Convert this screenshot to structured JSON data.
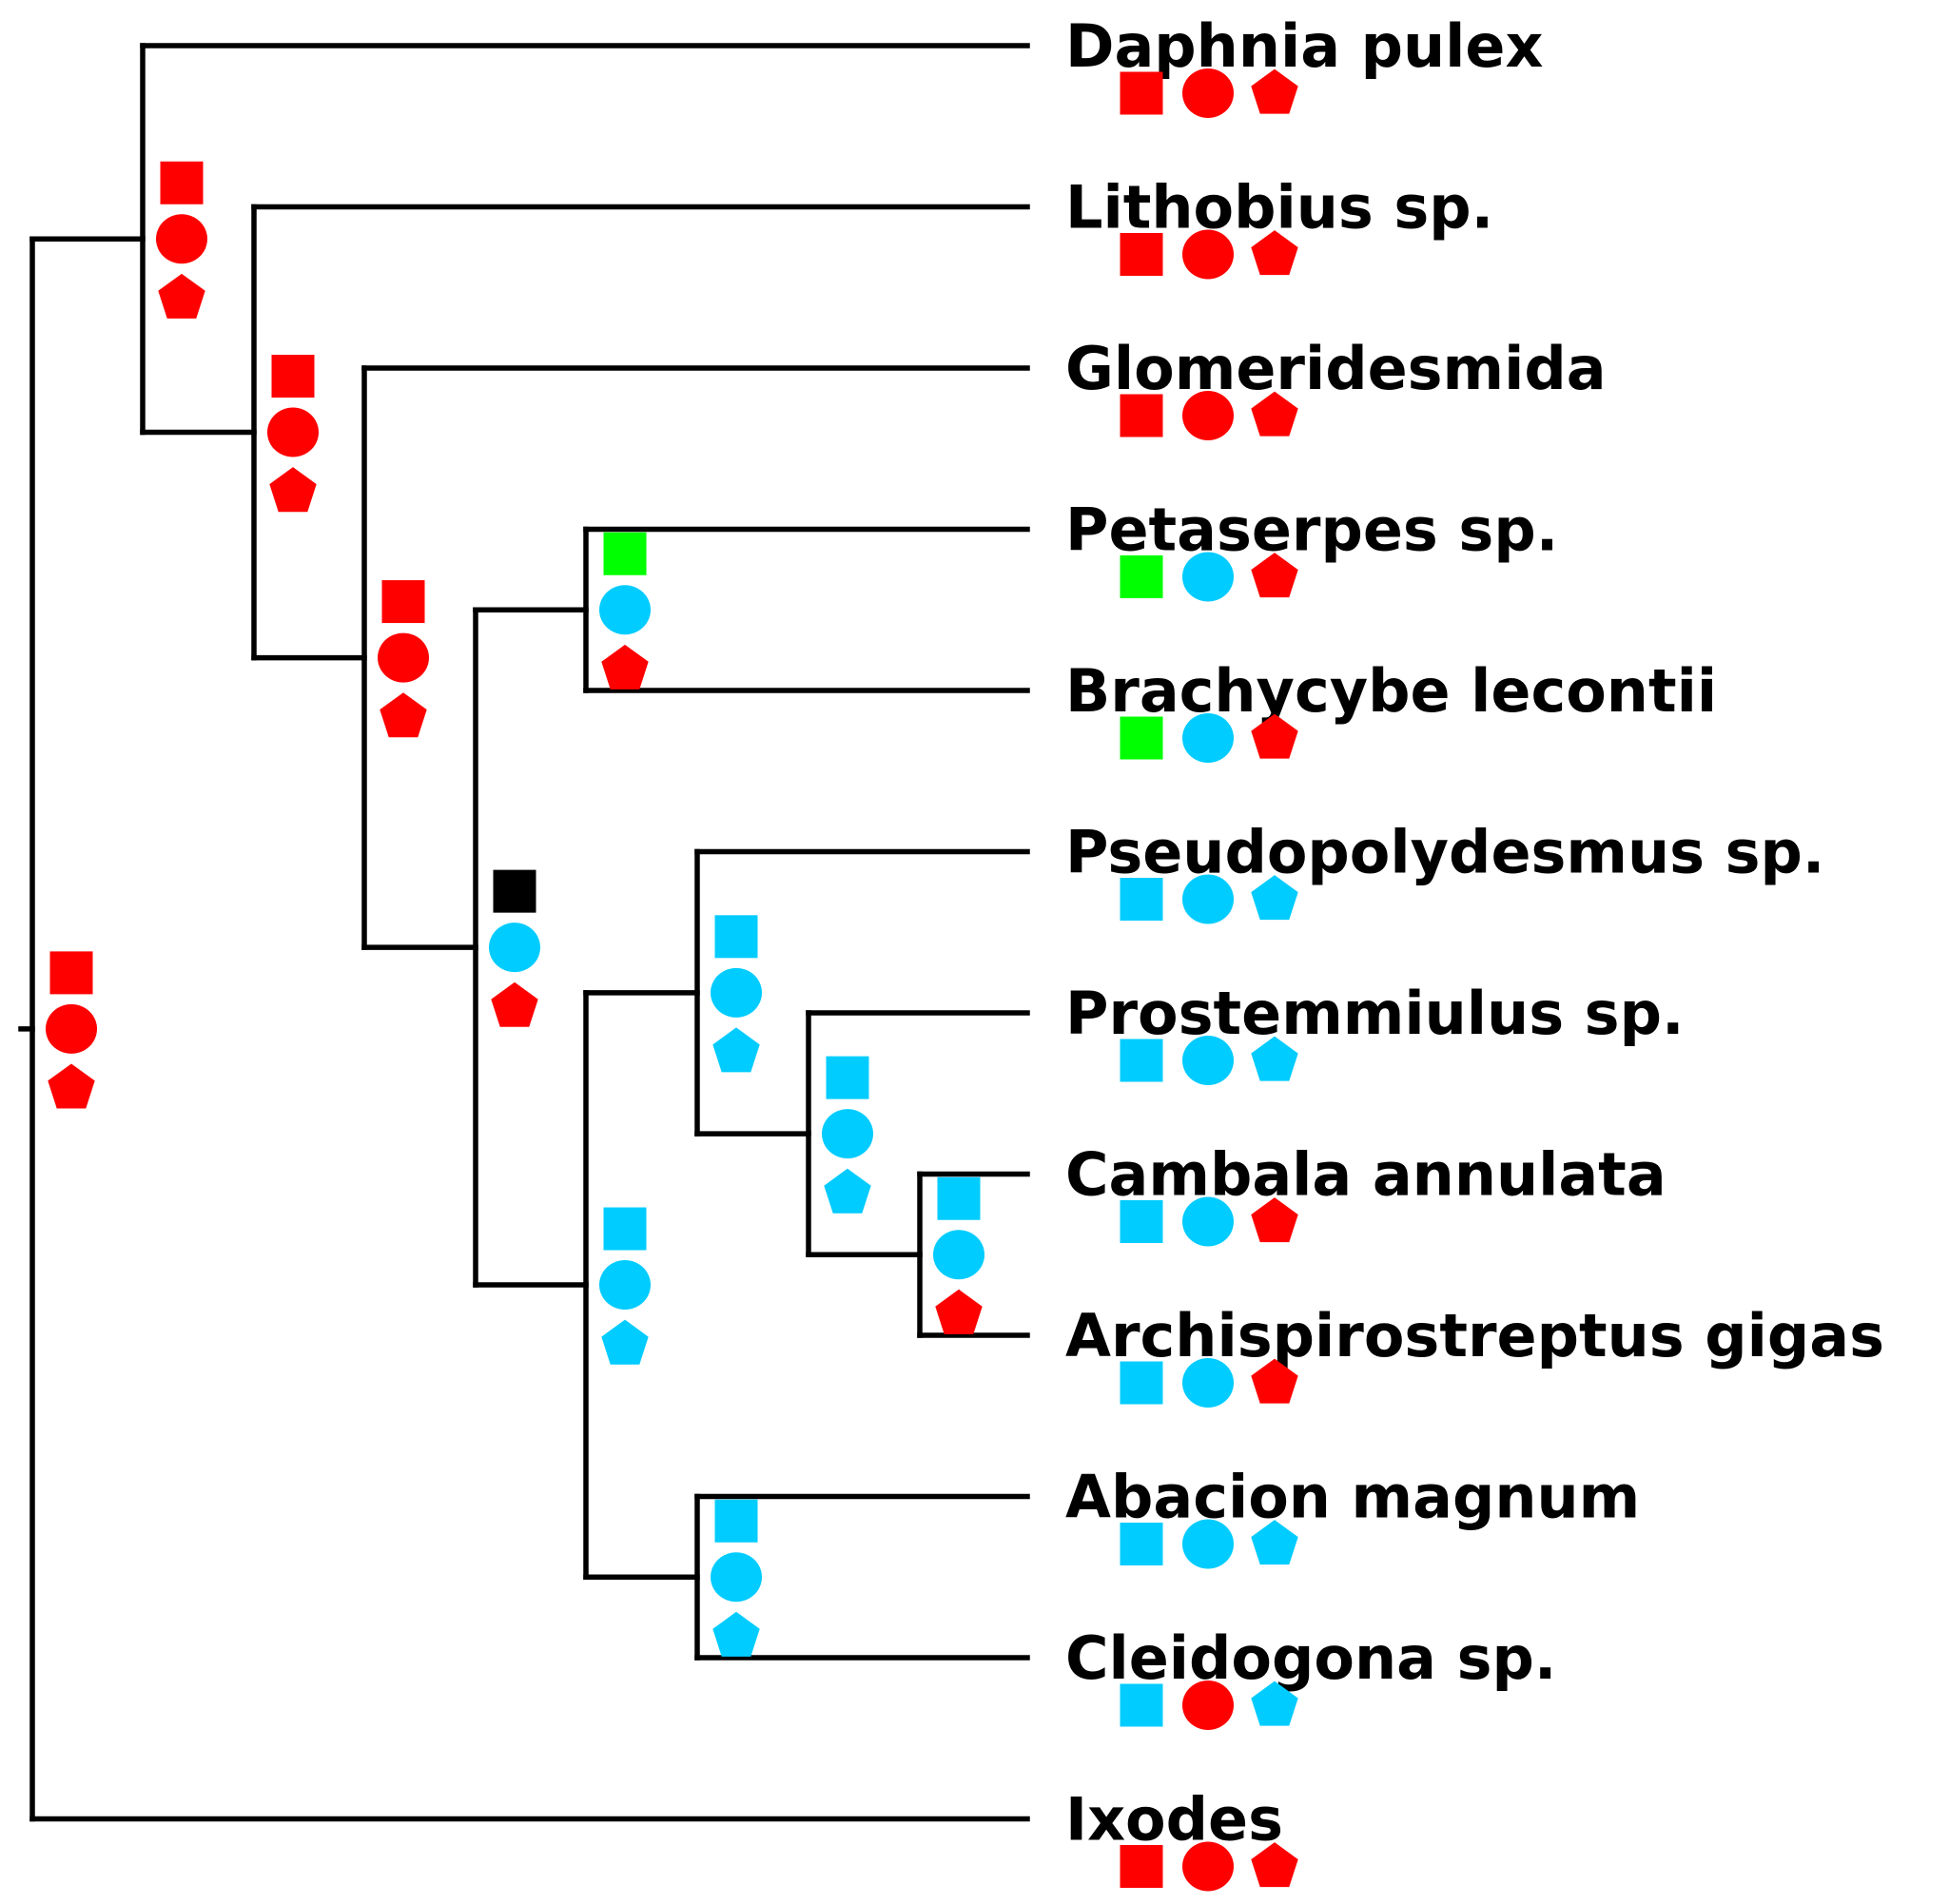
{
  "colors": {
    "red": "#ff0000",
    "cyan": "#00ccff",
    "green": "#00ff00",
    "black": "#000000"
  },
  "marker_order": [
    "square-icon",
    "circle-icon",
    "pentagon-icon"
  ],
  "taxa": [
    {
      "label": "Daphnia pulex",
      "states": [
        "red",
        "red",
        "red"
      ]
    },
    {
      "label": "Lithobius sp.",
      "states": [
        "red",
        "red",
        "red"
      ]
    },
    {
      "label": "Glomeridesmida",
      "states": [
        "red",
        "red",
        "red"
      ]
    },
    {
      "label": "Petaserpes sp.",
      "states": [
        "green",
        "cyan",
        "red"
      ]
    },
    {
      "label": "Brachycybe lecontii",
      "states": [
        "green",
        "cyan",
        "red"
      ]
    },
    {
      "label": "Pseudopolydesmus sp.",
      "states": [
        "cyan",
        "cyan",
        "cyan"
      ]
    },
    {
      "label": "Prostemmiulus sp.",
      "states": [
        "cyan",
        "cyan",
        "cyan"
      ]
    },
    {
      "label": "Cambala annulata",
      "states": [
        "cyan",
        "cyan",
        "red"
      ]
    },
    {
      "label": "Archispirostreptus gigas",
      "states": [
        "cyan",
        "cyan",
        "red"
      ]
    },
    {
      "label": "Abacion magnum",
      "states": [
        "cyan",
        "cyan",
        "cyan"
      ]
    },
    {
      "label": "Cleidogona sp.",
      "states": [
        "cyan",
        "red",
        "cyan"
      ]
    },
    {
      "label": "Ixodes",
      "states": [
        "red",
        "red",
        "red"
      ]
    }
  ],
  "nodes": [
    {
      "id": "root",
      "children": [
        "n1",
        "t11"
      ],
      "states": [
        "red",
        "red",
        "red"
      ]
    },
    {
      "id": "n1",
      "children": [
        "t0",
        "n2"
      ],
      "states": [
        "red",
        "red",
        "red"
      ]
    },
    {
      "id": "n2",
      "children": [
        "t1",
        "n3"
      ],
      "states": [
        "red",
        "red",
        "red"
      ]
    },
    {
      "id": "n3",
      "children": [
        "t2",
        "n4"
      ],
      "states": [
        "red",
        "red",
        "red"
      ]
    },
    {
      "id": "n4",
      "children": [
        "n5",
        "n6"
      ],
      "states": [
        "black",
        "cyan",
        "red"
      ]
    },
    {
      "id": "n5",
      "children": [
        "t3",
        "t4"
      ],
      "states": [
        "green",
        "cyan",
        "red"
      ]
    },
    {
      "id": "n6",
      "children": [
        "n7",
        "n10"
      ],
      "states": [
        "cyan",
        "cyan",
        "cyan"
      ]
    },
    {
      "id": "n7",
      "children": [
        "t5",
        "n8"
      ],
      "states": [
        "cyan",
        "cyan",
        "cyan"
      ]
    },
    {
      "id": "n8",
      "children": [
        "t6",
        "n9"
      ],
      "states": [
        "cyan",
        "cyan",
        "cyan"
      ]
    },
    {
      "id": "n9",
      "children": [
        "t7",
        "t8"
      ],
      "states": [
        "cyan",
        "cyan",
        "red"
      ]
    },
    {
      "id": "n10",
      "children": [
        "t9",
        "t10"
      ],
      "states": [
        "cyan",
        "cyan",
        "cyan"
      ]
    }
  ]
}
